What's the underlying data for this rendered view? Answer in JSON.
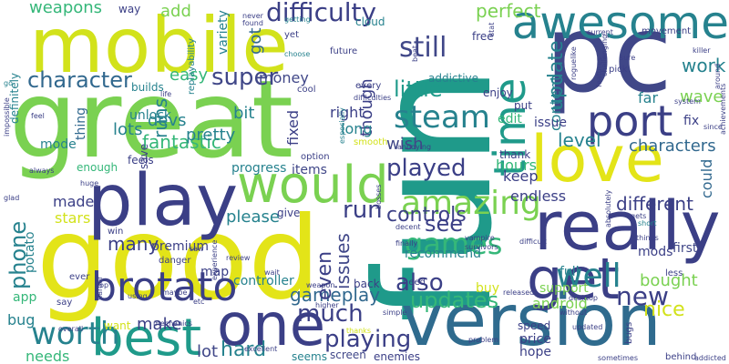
{
  "word_cloud": {
    "palette": {
      "navy": "#3b3f86",
      "indigo": "#404788",
      "blue": "#31688e",
      "steel": "#2f6b8e",
      "teal": "#26828e",
      "aqua": "#1f9a8a",
      "green": "#22a884",
      "mint": "#35b779",
      "lime": "#7ad151",
      "chartreuse": "#a0da39",
      "yellow": "#d2e21b",
      "gold": "#e3e418",
      "purple": "#482677"
    },
    "words": [
      {
        "text": "fun",
        "color": "aqua"
      },
      {
        "text": "great",
        "color": "lime"
      },
      {
        "text": "good",
        "color": "gold"
      },
      {
        "text": "pc",
        "color": "indigo"
      },
      {
        "text": "mobile",
        "color": "yellow"
      },
      {
        "text": "really",
        "color": "navy"
      },
      {
        "text": "version",
        "color": "steel"
      },
      {
        "text": "love",
        "color": "gold"
      },
      {
        "text": "play",
        "color": "navy"
      },
      {
        "text": "one",
        "color": "navy"
      },
      {
        "text": "awesome",
        "color": "teal"
      },
      {
        "text": "best",
        "color": "aqua"
      },
      {
        "text": "would",
        "color": "lime"
      },
      {
        "text": "get",
        "color": "navy"
      },
      {
        "text": "time",
        "color": "aqua"
      },
      {
        "text": "port",
        "color": "navy"
      },
      {
        "text": "brotato",
        "color": "navy"
      },
      {
        "text": "amazing",
        "color": "lime"
      },
      {
        "text": "worth",
        "color": "teal"
      },
      {
        "text": "well",
        "color": "teal"
      },
      {
        "text": "much",
        "color": "navy"
      },
      {
        "text": "steam",
        "color": "teal"
      },
      {
        "text": "games",
        "color": "mint"
      },
      {
        "text": "playing",
        "color": "navy"
      },
      {
        "text": "difficulty",
        "color": "navy"
      },
      {
        "text": "new",
        "color": "navy"
      },
      {
        "text": "super",
        "color": "indigo"
      },
      {
        "text": "still",
        "color": "indigo"
      },
      {
        "text": "also",
        "color": "navy"
      },
      {
        "text": "played",
        "color": "navy"
      },
      {
        "text": "character",
        "color": "blue"
      },
      {
        "text": "characters",
        "color": "blue"
      },
      {
        "text": "fantastic",
        "color": "mint"
      },
      {
        "text": "update",
        "color": "teal"
      },
      {
        "text": "run",
        "color": "navy"
      },
      {
        "text": "gameplay",
        "color": "blue"
      },
      {
        "text": "updates",
        "color": "mint"
      },
      {
        "text": "hard",
        "color": "teal"
      },
      {
        "text": "little",
        "color": "aqua"
      },
      {
        "text": "better",
        "color": "teal"
      },
      {
        "text": "phone",
        "color": "teal"
      },
      {
        "text": "controls",
        "color": "navy"
      },
      {
        "text": "different",
        "color": "navy"
      },
      {
        "text": "nice",
        "color": "yellow"
      },
      {
        "text": "even",
        "color": "navy"
      },
      {
        "text": "see",
        "color": "navy"
      },
      {
        "text": "issues",
        "color": "indigo"
      },
      {
        "text": "weapons",
        "color": "mint"
      },
      {
        "text": "perfect",
        "color": "lime"
      },
      {
        "text": "lots",
        "color": "teal"
      },
      {
        "text": "many",
        "color": "navy"
      },
      {
        "text": "please",
        "color": "teal"
      },
      {
        "text": "work",
        "color": "teal"
      },
      {
        "text": "wave",
        "color": "lime"
      },
      {
        "text": "level",
        "color": "teal"
      },
      {
        "text": "pretty",
        "color": "teal"
      },
      {
        "text": "make",
        "color": "navy"
      },
      {
        "text": "lot",
        "color": "indigo"
      },
      {
        "text": "add",
        "color": "lime"
      },
      {
        "text": "easy",
        "color": "mint"
      },
      {
        "text": "money",
        "color": "indigo"
      },
      {
        "text": "runs",
        "color": "teal"
      },
      {
        "text": "bit",
        "color": "teal"
      },
      {
        "text": "got",
        "color": "blue"
      },
      {
        "text": "though",
        "color": "navy"
      },
      {
        "text": "wish",
        "color": "indigo"
      },
      {
        "text": "long",
        "color": "teal"
      },
      {
        "text": "right",
        "color": "navy"
      },
      {
        "text": "fixed",
        "color": "navy"
      },
      {
        "text": "devs",
        "color": "teal"
      },
      {
        "text": "hours",
        "color": "mint"
      },
      {
        "text": "keep",
        "color": "navy"
      },
      {
        "text": "content",
        "color": "teal"
      },
      {
        "text": "edit",
        "color": "mint"
      },
      {
        "text": "issue",
        "color": "navy"
      },
      {
        "text": "fix",
        "color": "navy"
      },
      {
        "text": "far",
        "color": "teal"
      },
      {
        "text": "could",
        "color": "blue"
      },
      {
        "text": "bought",
        "color": "lime"
      },
      {
        "text": "first",
        "color": "indigo"
      },
      {
        "text": "endless",
        "color": "navy"
      },
      {
        "text": "stars",
        "color": "yellow"
      },
      {
        "text": "made",
        "color": "navy"
      },
      {
        "text": "potato",
        "color": "teal"
      },
      {
        "text": "bug",
        "color": "teal"
      },
      {
        "text": "app",
        "color": "mint"
      },
      {
        "text": "controller",
        "color": "teal"
      },
      {
        "text": "map",
        "color": "navy"
      },
      {
        "text": "items",
        "color": "indigo"
      },
      {
        "text": "progress",
        "color": "teal"
      },
      {
        "text": "premium",
        "color": "navy"
      },
      {
        "text": "recommend",
        "color": "teal"
      },
      {
        "text": "android",
        "color": "lime"
      },
      {
        "text": "buy",
        "color": "yellow"
      },
      {
        "text": "needs",
        "color": "mint"
      },
      {
        "text": "want",
        "color": "yellow"
      },
      {
        "text": "screen",
        "color": "indigo"
      },
      {
        "text": "price",
        "color": "navy"
      },
      {
        "text": "hope",
        "color": "navy"
      },
      {
        "text": "full",
        "color": "teal"
      },
      {
        "text": "support",
        "color": "lime"
      },
      {
        "text": "mods",
        "color": "navy"
      },
      {
        "text": "enemies",
        "color": "navy"
      },
      {
        "text": "seems",
        "color": "teal"
      },
      {
        "text": "variety",
        "color": "teal"
      },
      {
        "text": "unlock",
        "color": "teal"
      },
      {
        "text": "builds",
        "color": "teal"
      },
      {
        "text": "mode",
        "color": "teal"
      },
      {
        "text": "thing",
        "color": "blue"
      },
      {
        "text": "feels",
        "color": "navy"
      },
      {
        "text": "enough",
        "color": "mint"
      },
      {
        "text": "save",
        "color": "navy"
      },
      {
        "text": "win",
        "color": "navy"
      },
      {
        "text": "danger",
        "color": "navy"
      },
      {
        "text": "give",
        "color": "navy"
      },
      {
        "text": "option",
        "color": "navy"
      },
      {
        "text": "back",
        "color": "navy"
      },
      {
        "text": "way",
        "color": "navy"
      },
      {
        "text": "replayability",
        "color": "teal"
      },
      {
        "text": "cloud",
        "color": "teal"
      },
      {
        "text": "free",
        "color": "navy"
      },
      {
        "text": "future",
        "color": "navy"
      },
      {
        "text": "every",
        "color": "navy"
      },
      {
        "text": "addictive",
        "color": "teal"
      },
      {
        "text": "enjoy",
        "color": "navy"
      },
      {
        "text": "put",
        "color": "navy"
      },
      {
        "text": "thank",
        "color": "navy"
      },
      {
        "text": "speed",
        "color": "navy"
      },
      {
        "text": "bugs",
        "color": "navy"
      },
      {
        "text": "need",
        "color": "navy"
      },
      {
        "text": "definitely",
        "color": "teal"
      },
      {
        "text": "cool",
        "color": "navy"
      },
      {
        "text": "yet",
        "color": "navy"
      },
      {
        "text": "never",
        "color": "navy"
      },
      {
        "text": "getting",
        "color": "teal"
      },
      {
        "text": "found",
        "color": "navy"
      },
      {
        "text": "choose",
        "color": "teal"
      },
      {
        "text": "difficulties",
        "color": "navy"
      },
      {
        "text": "especially",
        "color": "teal"
      },
      {
        "text": "smooth",
        "color": "yellow"
      },
      {
        "text": "annoying",
        "color": "navy"
      },
      {
        "text": "beat",
        "color": "navy"
      },
      {
        "text": "stat",
        "color": "navy"
      },
      {
        "text": "current",
        "color": "navy"
      },
      {
        "text": "movement",
        "color": "navy"
      },
      {
        "text": "roguelike",
        "color": "navy"
      },
      {
        "text": "killer",
        "color": "navy"
      },
      {
        "text": "features",
        "color": "navy"
      },
      {
        "text": "pick",
        "color": "navy"
      },
      {
        "text": "around",
        "color": "navy"
      },
      {
        "text": "system",
        "color": "navy"
      },
      {
        "text": "since",
        "color": "navy"
      },
      {
        "text": "challenging",
        "color": "navy"
      },
      {
        "text": "achievements",
        "color": "navy"
      },
      {
        "text": "sure",
        "color": "navy"
      },
      {
        "text": "go",
        "color": "teal"
      },
      {
        "text": "life",
        "color": "navy"
      },
      {
        "text": "feel",
        "color": "navy"
      },
      {
        "text": "impossible",
        "color": "navy"
      },
      {
        "text": "always",
        "color": "navy"
      },
      {
        "text": "glad",
        "color": "navy"
      },
      {
        "text": "huge",
        "color": "navy"
      },
      {
        "text": "ever",
        "color": "navy"
      },
      {
        "text": "top",
        "color": "navy"
      },
      {
        "text": "overall",
        "color": "navy"
      },
      {
        "text": "say",
        "color": "navy"
      },
      {
        "text": "using",
        "color": "navy"
      },
      {
        "text": "harder",
        "color": "navy"
      },
      {
        "text": "mechanics",
        "color": "navy"
      },
      {
        "text": "maybe",
        "color": "navy"
      },
      {
        "text": "etc",
        "color": "navy"
      },
      {
        "text": "saw",
        "color": "navy"
      },
      {
        "text": "review",
        "color": "navy"
      },
      {
        "text": "experience",
        "color": "navy"
      },
      {
        "text": "excellent",
        "color": "navy"
      },
      {
        "text": "wait",
        "color": "navy"
      },
      {
        "text": "weapon",
        "color": "navy"
      },
      {
        "text": "higher",
        "color": "navy"
      },
      {
        "text": "simple",
        "color": "navy"
      },
      {
        "text": "thanks",
        "color": "yellow"
      },
      {
        "text": "decent",
        "color": "navy"
      },
      {
        "text": "bosses",
        "color": "navy"
      },
      {
        "text": "finally",
        "color": "navy"
      },
      {
        "text": "vampire",
        "color": "navy"
      },
      {
        "text": "survivors",
        "color": "navy"
      },
      {
        "text": "difficult",
        "color": "navy"
      },
      {
        "text": "problem",
        "color": "navy"
      },
      {
        "text": "released",
        "color": "navy"
      },
      {
        "text": "desktop",
        "color": "navy"
      },
      {
        "text": "without",
        "color": "navy"
      },
      {
        "text": "updated",
        "color": "navy"
      },
      {
        "text": "sometimes",
        "color": "navy"
      },
      {
        "text": "absolutely",
        "color": "navy"
      },
      {
        "text": "gets",
        "color": "navy"
      },
      {
        "text": "short",
        "color": "teal"
      },
      {
        "text": "things",
        "color": "navy"
      },
      {
        "text": "behind",
        "color": "navy"
      },
      {
        "text": "addicted",
        "color": "navy"
      },
      {
        "text": "less",
        "color": "navy"
      }
    ]
  }
}
